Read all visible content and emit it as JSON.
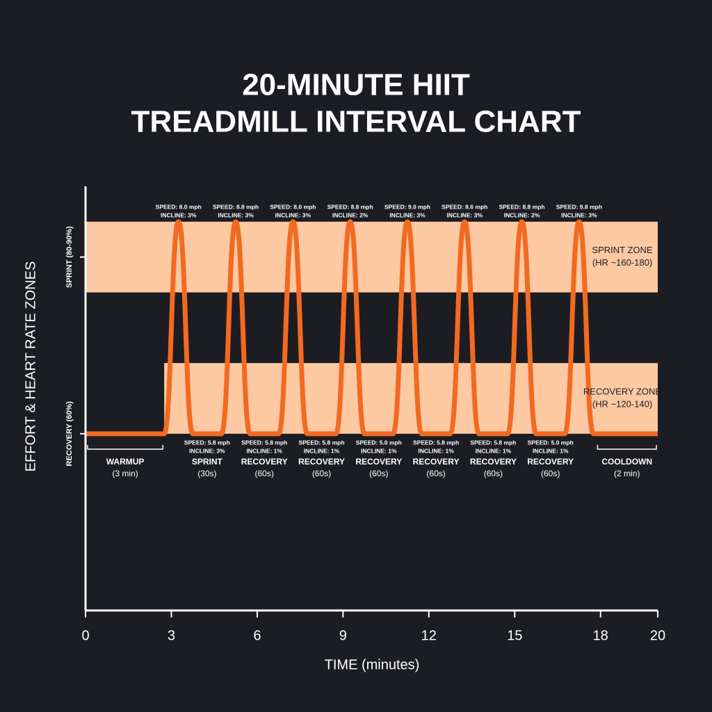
{
  "chart_data": {
    "type": "line",
    "title": [
      "20-MINUTE HIIT",
      "TREADMILL INTERVAL CHART"
    ],
    "x_label": "TIME (minutes)",
    "y_label": "EFFORT & HEART RATE ZONES",
    "x": [
      0,
      2.75,
      3.25,
      3.75,
      4.75,
      5.25,
      5.75,
      6.75,
      7.25,
      7.75,
      8.75,
      9.25,
      9.75,
      10.75,
      11.25,
      11.75,
      12.75,
      13.25,
      13.75,
      14.75,
      15.25,
      15.75,
      16.75,
      17.25,
      17.75,
      20
    ],
    "values": [
      60,
      60,
      90,
      60,
      60,
      90,
      60,
      60,
      90,
      60,
      60,
      90,
      60,
      60,
      90,
      60,
      60,
      90,
      60,
      60,
      90,
      60,
      60,
      90,
      60,
      60
    ],
    "color": "#f26a21",
    "xlim": [
      0,
      20
    ],
    "xticks": [
      0,
      3,
      6,
      9,
      12,
      15,
      18,
      20
    ],
    "ylim": [
      35,
      95
    ],
    "yticks": [
      {
        "value": 60,
        "label": "RECOVERY (60%)"
      },
      {
        "value": 85,
        "label": "SPRINT (80-90%)"
      }
    ],
    "zones": [
      {
        "name": "SPRINT ZONE",
        "hr": "(HR ~160-180)",
        "range": [
          80,
          90
        ],
        "color": "#fcc9a3"
      },
      {
        "name": "RECOVERY ZONE",
        "hr": "(HR ~120-140)",
        "range": [
          60,
          70
        ],
        "color": "#fcc9a3"
      }
    ],
    "peak_labels": [
      [
        "SPEED: 8.0 mph",
        "INCLINE: 3%"
      ],
      [
        "SPEED: 8.8 mph",
        "INCLINE: 3%"
      ],
      [
        "SPEED: 8.0 mph",
        "INCLINE: 3%"
      ],
      [
        "SPEED: 8.8 mph",
        "INCLINE: 2%"
      ],
      [
        "SPEED: 9.0 mph",
        "INCLINE: 3%"
      ],
      [
        "SPEED: 8.6 mph",
        "INCLINE: 3%"
      ],
      [
        "SPEED: 8.8 mph",
        "INCLINE: 2%"
      ],
      [
        "SPEED: 9.8 mph",
        "INCLINE: 3%"
      ]
    ],
    "trough_labels": [
      [
        "SPEED: 5.8 mph",
        "INCLINE: 3%"
      ],
      [
        "SPEED: 5.8 mph",
        "INCLINE: 1%"
      ],
      [
        "SPEED: 5.8 mph",
        "INCLINE: 1%"
      ],
      [
        "SPEED: 5.0 mph",
        "INCLINE: 1%"
      ],
      [
        "SPEED: 5.8 mph",
        "INCLINE: 1%"
      ],
      [
        "SPEED: 5.8 mph",
        "INCLINE: 1%"
      ],
      [
        "SPEED: 5.0 mph",
        "INCLINE: 1%"
      ]
    ],
    "phases": [
      [
        "WARMUP",
        "(3 min)"
      ],
      [
        "SPRINT",
        "(30s)"
      ],
      [
        "RECOVERY",
        "(60s)"
      ],
      [
        "RECOVERY",
        "(60s)"
      ],
      [
        "RECOVERY",
        "(60s)"
      ],
      [
        "RECOVERY",
        "(60s)"
      ],
      [
        "RECOVERY",
        "(60s)"
      ],
      [
        "RECOVERY",
        "(60s)"
      ],
      [
        "COOLDOWN",
        "(2 min)"
      ]
    ]
  }
}
